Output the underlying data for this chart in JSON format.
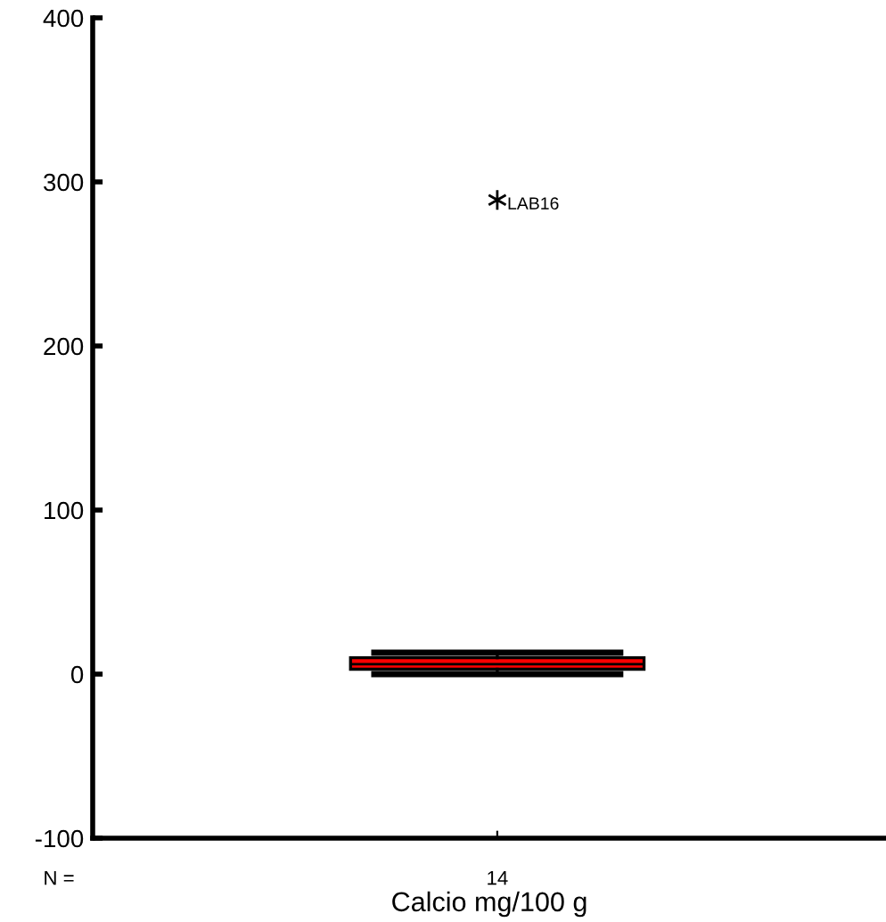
{
  "chart_data": {
    "type": "box",
    "xlabel": "Calcio mg/100 g",
    "categories": [
      null
    ],
    "boxes": [
      {
        "low": 0,
        "q1": 3,
        "median": 6,
        "q3": 10,
        "high": 13,
        "outliers": [
          289
        ]
      }
    ],
    "color": "#ff0000",
    "marker": "star",
    "ylim": [
      -100,
      400
    ],
    "yticks": [
      -100,
      0,
      100,
      200,
      300,
      400
    ],
    "grid": false,
    "annotations": [
      "LAB16",
      "N =",
      "14"
    ]
  }
}
